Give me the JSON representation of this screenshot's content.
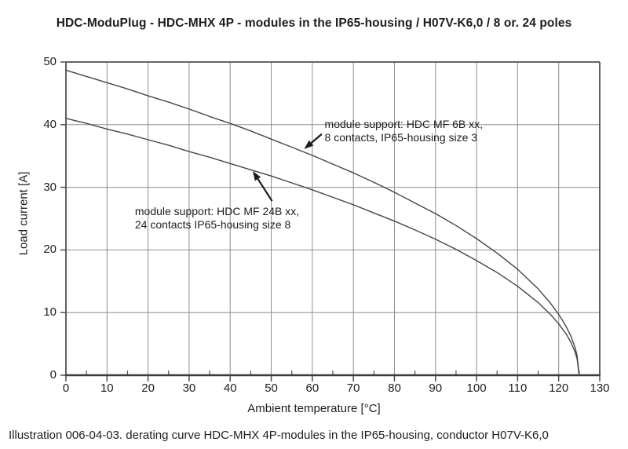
{
  "caption": "Illustration 006-04-03. derating curve HDC-MHX 4P-modules in the IP65-housing, conductor H07V-K6,0",
  "colors": {
    "background": "#ffffff",
    "text": "#1d1d1d",
    "grid": "#8e8e8e",
    "axis": "#4f4f4f",
    "axis_strong": "#3b3b3b",
    "curve": "#454545"
  },
  "chart_data": {
    "type": "line",
    "title": "HDC-ModuPlug - HDC-MHX 4P - modules in the IP65-housing / H07V-K6,0 / 8 or. 24 poles",
    "xlabel": "Ambient temperature [°C]",
    "ylabel": "Load current [A]",
    "xlim": [
      0,
      130
    ],
    "ylim": [
      0,
      50
    ],
    "x_ticks": [
      0,
      10,
      20,
      30,
      40,
      50,
      60,
      70,
      80,
      90,
      100,
      110,
      120,
      130
    ],
    "x_minor_ticks": [
      5,
      15,
      25,
      35,
      45,
      55,
      65,
      75,
      85,
      95,
      105,
      115,
      125
    ],
    "y_ticks": [
      0,
      10,
      20,
      30,
      40,
      50
    ],
    "grid": true,
    "legend": "none",
    "x": [
      0,
      5,
      10,
      15,
      20,
      25,
      30,
      35,
      40,
      45,
      50,
      55,
      60,
      65,
      70,
      75,
      80,
      85,
      90,
      95,
      100,
      105,
      110,
      115,
      118,
      120,
      121,
      122,
      123,
      124,
      124.5,
      125
    ],
    "series": [
      {
        "name": "module support: HDC MF 6B xx, 8 contacts, IP65-housing size 3",
        "values": [
          48.7,
          47.7,
          46.7,
          45.7,
          44.6,
          43.6,
          42.5,
          41.3,
          40.2,
          39.0,
          37.7,
          36.4,
          35.1,
          33.7,
          32.3,
          30.8,
          29.2,
          27.5,
          25.8,
          23.9,
          21.8,
          19.5,
          16.9,
          13.8,
          11.5,
          9.7,
          8.7,
          7.5,
          6.2,
          4.4,
          3.1,
          0
        ]
      },
      {
        "name": "module support: HDC MF 24B xx, 24 contacts IP65-housing size 8",
        "values": [
          41.0,
          40.2,
          39.3,
          38.5,
          37.6,
          36.7,
          35.7,
          34.8,
          33.8,
          32.8,
          31.8,
          30.7,
          29.6,
          28.4,
          27.2,
          25.9,
          24.6,
          23.2,
          21.7,
          20.1,
          18.3,
          16.4,
          14.2,
          11.6,
          9.7,
          8.2,
          7.3,
          6.4,
          5.2,
          3.7,
          2.6,
          0
        ]
      }
    ],
    "annotations": [
      {
        "lines": [
          "module support: HDC MF 6B xx,",
          "8 contacts, IP65-housing size 3"
        ],
        "text_at": {
          "t": 63.0,
          "i": 41.1
        },
        "arrow_from": {
          "t": 62.3,
          "i": 38.5
        },
        "arrow_to": {
          "t": 58.0,
          "i": 36.1
        }
      },
      {
        "lines": [
          "module support: HDC MF 24B xx,",
          "24 contacts IP65-housing size 8"
        ],
        "text_at": {
          "t": 16.8,
          "i": 27.2
        },
        "arrow_from": {
          "t": 50.2,
          "i": 27.8
        },
        "arrow_to": {
          "t": 45.5,
          "i": 32.6
        }
      }
    ]
  }
}
